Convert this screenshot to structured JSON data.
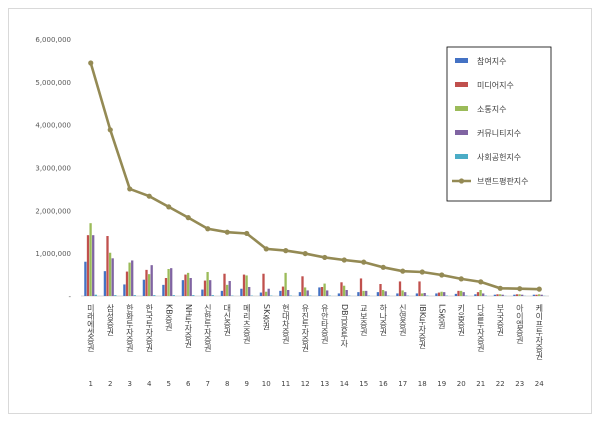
{
  "chart_data": {
    "type": "bar",
    "title": "",
    "xlabel": "",
    "ylabel": "",
    "ylim": [
      0,
      6000000
    ],
    "yticks": [
      0,
      1000000,
      2000000,
      3000000,
      4000000,
      5000000,
      6000000
    ],
    "ytick_labels": [
      "-",
      "1,000,000",
      "2,000,000",
      "3,000,000",
      "4,000,000",
      "5,000,000",
      "6,000,000"
    ],
    "grid": false,
    "legend_position": "top-right",
    "ranks": [
      "1",
      "2",
      "3",
      "4",
      "5",
      "6",
      "7",
      "8",
      "9",
      "10",
      "11",
      "12",
      "13",
      "14",
      "15",
      "16",
      "17",
      "18",
      "19",
      "20",
      "21",
      "22",
      "23",
      "24"
    ],
    "categories": [
      "미래에셋증권",
      "삼성증권",
      "한화투자증권",
      "한국투자증권",
      "KB증권",
      "NH투자증권",
      "신한투자증권",
      "대신증권",
      "메리츠증권",
      "SK증권",
      "현대차증권",
      "유진투자증권",
      "유안타증권",
      "DB금융투자",
      "교보증권",
      "하나증권",
      "신영증권",
      "IBK투자증권",
      "LS증권",
      "키움증권",
      "다올투자증권",
      "부국증권",
      "아이엠증권",
      "케이프투자증권"
    ],
    "series": [
      {
        "name": "참여지수",
        "color": "#4472c4",
        "kind": "bar",
        "values": [
          800000,
          580000,
          270000,
          380000,
          260000,
          370000,
          150000,
          120000,
          170000,
          80000,
          120000,
          90000,
          200000,
          60000,
          90000,
          90000,
          60000,
          60000,
          60000,
          50000,
          40000,
          30000,
          30000,
          30000
        ]
      },
      {
        "name": "미디어지수",
        "color": "#c0504d",
        "kind": "bar",
        "values": [
          1420000,
          1400000,
          570000,
          610000,
          420000,
          500000,
          360000,
          520000,
          500000,
          520000,
          220000,
          460000,
          210000,
          320000,
          410000,
          280000,
          340000,
          340000,
          80000,
          120000,
          90000,
          40000,
          40000,
          30000
        ]
      },
      {
        "name": "소통지수",
        "color": "#9bbb59",
        "kind": "bar",
        "values": [
          1700000,
          1010000,
          780000,
          510000,
          630000,
          540000,
          560000,
          260000,
          480000,
          100000,
          540000,
          200000,
          290000,
          240000,
          120000,
          140000,
          130000,
          60000,
          100000,
          120000,
          140000,
          40000,
          40000,
          40000
        ]
      },
      {
        "name": "커뮤니티지수",
        "color": "#8064a2",
        "kind": "bar",
        "values": [
          1420000,
          880000,
          830000,
          720000,
          650000,
          420000,
          370000,
          350000,
          210000,
          170000,
          140000,
          130000,
          130000,
          140000,
          120000,
          110000,
          90000,
          70000,
          90000,
          90000,
          60000,
          30000,
          30000,
          30000
        ]
      },
      {
        "name": "사회공헌지수",
        "color": "#4bacc6",
        "kind": "bar",
        "values": [
          30000,
          20000,
          20000,
          20000,
          20000,
          20000,
          20000,
          10000,
          10000,
          10000,
          10000,
          10000,
          10000,
          10000,
          10000,
          10000,
          10000,
          10000,
          10000,
          10000,
          10000,
          5000,
          5000,
          5000
        ]
      },
      {
        "name": "브랜드평판지수",
        "color": "#948a54",
        "kind": "line",
        "values": [
          5440000,
          3880000,
          2500000,
          2330000,
          2080000,
          1830000,
          1570000,
          1490000,
          1460000,
          1100000,
          1060000,
          990000,
          900000,
          840000,
          790000,
          670000,
          580000,
          560000,
          490000,
          400000,
          330000,
          180000,
          170000,
          160000
        ]
      }
    ]
  }
}
